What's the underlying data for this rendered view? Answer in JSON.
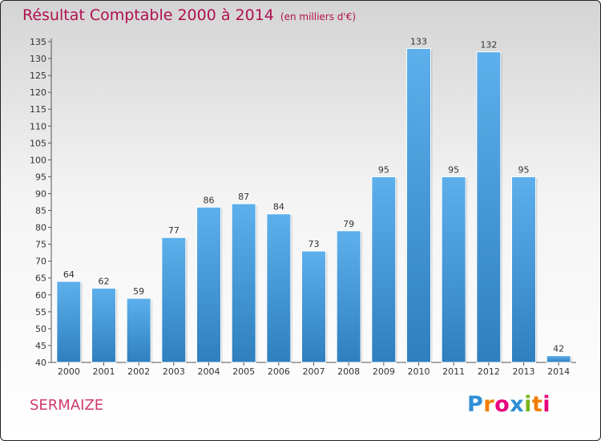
{
  "header": {
    "title": "Résultat Comptable 2000 à 2014",
    "subtitle": "(en milliers d'€)"
  },
  "commune": "SERMAIZE",
  "logo": {
    "text": "Proxiti",
    "colors": [
      "#2e8fd6",
      "#ef7d00",
      "#e8007d",
      "#2e8fd6",
      "#7ab51d",
      "#ef7d00",
      "#e8007d"
    ]
  },
  "chart_data": {
    "type": "bar",
    "title": "Résultat Comptable 2000 à 2014",
    "subtitle": "(en milliers d'€)",
    "categories": [
      "2000",
      "2001",
      "2002",
      "2003",
      "2004",
      "2005",
      "2006",
      "2007",
      "2008",
      "2009",
      "2010",
      "2011",
      "2012",
      "2013",
      "2014"
    ],
    "values": [
      64,
      62,
      59,
      77,
      86,
      87,
      84,
      73,
      79,
      95,
      133,
      95,
      132,
      95,
      42
    ],
    "ylim": [
      40,
      135
    ],
    "ytick_step": 5,
    "grid": false,
    "bar_color": "#4a9de0",
    "axis_color": "#555555"
  }
}
